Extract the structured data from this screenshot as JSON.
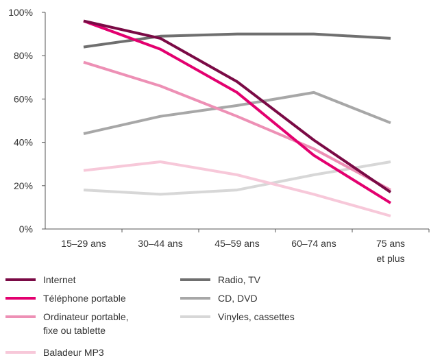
{
  "chart_data": {
    "type": "line",
    "categories": [
      [
        "15–29 ans"
      ],
      [
        "30–44 ans"
      ],
      [
        "45–59 ans"
      ],
      [
        "60–74 ans"
      ],
      [
        "75 ans",
        "et plus"
      ]
    ],
    "ylim": [
      0,
      100
    ],
    "yticks": [
      0,
      20,
      40,
      60,
      80,
      100
    ],
    "ytick_labels": [
      "0%",
      "20%",
      "40%",
      "60%",
      "80%",
      "100%"
    ],
    "grid": false,
    "legend_position": "bottom",
    "series": [
      {
        "name": [
          "Internet"
        ],
        "color": "#7a0a45",
        "values": [
          96,
          88,
          68,
          41,
          17
        ]
      },
      {
        "name": [
          "Téléphone portable"
        ],
        "color": "#e3006f",
        "values": [
          96,
          83,
          63,
          34,
          12
        ]
      },
      {
        "name": [
          "Ordinateur portable,",
          "fixe ou tablette"
        ],
        "color": "#ed90b5",
        "values": [
          77,
          66,
          52,
          37,
          18
        ]
      },
      {
        "name": [
          "Baladeur MP3"
        ],
        "color": "#f7c8d9",
        "values": [
          27,
          31,
          25,
          16,
          6
        ]
      },
      {
        "name": [
          "Radio, TV"
        ],
        "color": "#6f6f6f",
        "values": [
          84,
          89,
          90,
          90,
          88
        ]
      },
      {
        "name": [
          "CD, DVD"
        ],
        "color": "#a7a7a7",
        "values": [
          44,
          52,
          57,
          63,
          49
        ]
      },
      {
        "name": [
          "Vinyles, cassettes"
        ],
        "color": "#d7d7d7",
        "values": [
          18,
          16,
          18,
          25,
          31
        ]
      }
    ]
  }
}
